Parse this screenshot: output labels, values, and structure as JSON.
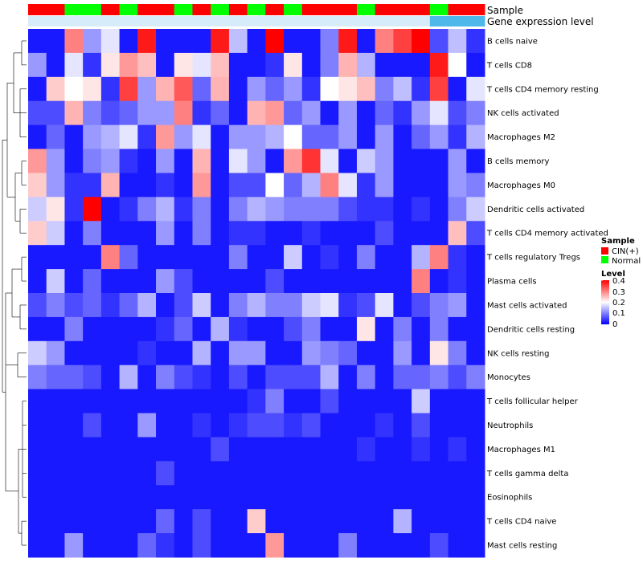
{
  "chart_data": {
    "type": "heatmap",
    "title": "",
    "annotations": [
      {
        "name": "Sample",
        "values": [
          "CIN(+)",
          "CIN(+)",
          "Normal",
          "Normal",
          "CIN(+)",
          "Normal",
          "CIN(+)",
          "CIN(+)",
          "Normal",
          "CIN(+)",
          "Normal",
          "CIN(+)",
          "Normal",
          "CIN(+)",
          "Normal",
          "CIN(+)",
          "CIN(+)",
          "CIN(+)",
          "Normal",
          "CIN(+)",
          "CIN(+)",
          "CIN(+)",
          "Normal",
          "CIN(+)",
          "CIN(+)"
        ]
      },
      {
        "name": "Gene expression level",
        "values": [
          "low",
          "low",
          "low",
          "low",
          "low",
          "low",
          "low",
          "low",
          "low",
          "low",
          "low",
          "low",
          "low",
          "low",
          "low",
          "low",
          "low",
          "low",
          "low",
          "low",
          "low",
          "low",
          "high",
          "high",
          "high"
        ]
      }
    ],
    "rows": [
      {
        "label": "B cells naive",
        "values": [
          0.02,
          0.02,
          0.3,
          0.12,
          0.18,
          0.02,
          0.38,
          0.02,
          0.02,
          0.02,
          0.38,
          0.15,
          0.02,
          0.4,
          0.02,
          0.02,
          0.1,
          0.38,
          0.02,
          0.3,
          0.35,
          0.4,
          0.06,
          0.15,
          0.04
        ]
      },
      {
        "label": "T cells CD8",
        "values": [
          0.12,
          0.02,
          0.18,
          0.04,
          0.22,
          0.28,
          0.25,
          0.02,
          0.22,
          0.18,
          0.25,
          0.02,
          0.02,
          0.04,
          0.22,
          0.02,
          0.1,
          0.26,
          0.14,
          0.02,
          0.02,
          0.02,
          0.38,
          0.2,
          0.02
        ]
      },
      {
        "label": "T cells CD4 memory resting",
        "values": [
          0.02,
          0.24,
          0.2,
          0.22,
          0.04,
          0.35,
          0.12,
          0.26,
          0.33,
          0.08,
          0.26,
          0.02,
          0.12,
          0.08,
          0.12,
          0.04,
          0.2,
          0.22,
          0.25,
          0.1,
          0.15,
          0.04,
          0.35,
          0.02,
          0.18
        ]
      },
      {
        "label": "NK cells activated",
        "values": [
          0.06,
          0.06,
          0.26,
          0.1,
          0.06,
          0.08,
          0.12,
          0.12,
          0.3,
          0.04,
          0.08,
          0.02,
          0.26,
          0.28,
          0.08,
          0.12,
          0.02,
          0.12,
          0.02,
          0.08,
          0.04,
          0.12,
          0.18,
          0.06,
          0.1
        ]
      },
      {
        "label": "Macrophages M2",
        "values": [
          0.02,
          0.08,
          0.02,
          0.12,
          0.14,
          0.18,
          0.04,
          0.28,
          0.12,
          0.18,
          0.02,
          0.12,
          0.12,
          0.14,
          0.2,
          0.08,
          0.08,
          0.12,
          0.02,
          0.12,
          0.02,
          0.08,
          0.12,
          0.04,
          0.14
        ]
      },
      {
        "label": "B cells memory",
        "values": [
          0.28,
          0.12,
          0.02,
          0.1,
          0.12,
          0.04,
          0.02,
          0.12,
          0.02,
          0.26,
          0.02,
          0.18,
          0.12,
          0.02,
          0.28,
          0.36,
          0.18,
          0.02,
          0.16,
          0.12,
          0.02,
          0.02,
          0.02,
          0.12,
          0.02
        ]
      },
      {
        "label": "Macrophages M0",
        "values": [
          0.24,
          0.12,
          0.04,
          0.04,
          0.26,
          0.02,
          0.02,
          0.04,
          0.02,
          0.28,
          0.02,
          0.06,
          0.06,
          0.2,
          0.08,
          0.14,
          0.3,
          0.18,
          0.04,
          0.12,
          0.02,
          0.02,
          0.02,
          0.12,
          0.1
        ]
      },
      {
        "label": "Dendritic cells activated",
        "values": [
          0.16,
          0.22,
          0.04,
          0.4,
          0.02,
          0.04,
          0.1,
          0.14,
          0.04,
          0.1,
          0.02,
          0.1,
          0.14,
          0.12,
          0.1,
          0.1,
          0.1,
          0.06,
          0.04,
          0.04,
          0.02,
          0.04,
          0.02,
          0.1,
          0.16
        ]
      },
      {
        "label": "T cells CD4 memory activated",
        "values": [
          0.24,
          0.16,
          0.02,
          0.1,
          0.02,
          0.02,
          0.02,
          0.12,
          0.02,
          0.1,
          0.02,
          0.04,
          0.04,
          0.02,
          0.02,
          0.04,
          0.02,
          0.02,
          0.02,
          0.06,
          0.02,
          0.02,
          0.02,
          0.25,
          0.06
        ]
      },
      {
        "label": "T cells regulatory  Tregs",
        "values": [
          0.02,
          0.02,
          0.02,
          0.02,
          0.3,
          0.08,
          0.02,
          0.02,
          0.02,
          0.02,
          0.02,
          0.1,
          0.02,
          0.02,
          0.16,
          0.02,
          0.04,
          0.02,
          0.1,
          0.02,
          0.02,
          0.14,
          0.3,
          0.04,
          0.02
        ]
      },
      {
        "label": "Plasma cells",
        "values": [
          0.02,
          0.16,
          0.02,
          0.08,
          0.02,
          0.02,
          0.02,
          0.12,
          0.06,
          0.02,
          0.02,
          0.02,
          0.02,
          0.06,
          0.02,
          0.02,
          0.02,
          0.02,
          0.02,
          0.02,
          0.02,
          0.3,
          0.02,
          0.04,
          0.02
        ]
      },
      {
        "label": "Mast cells activated",
        "values": [
          0.06,
          0.1,
          0.06,
          0.08,
          0.04,
          0.08,
          0.14,
          0.02,
          0.06,
          0.16,
          0.02,
          0.1,
          0.14,
          0.1,
          0.1,
          0.16,
          0.18,
          0.04,
          0.06,
          0.18,
          0.02,
          0.06,
          0.1,
          0.12,
          0.02
        ]
      },
      {
        "label": "Dendritic cells resting",
        "values": [
          0.02,
          0.02,
          0.1,
          0.02,
          0.02,
          0.02,
          0.02,
          0.04,
          0.08,
          0.02,
          0.14,
          0.04,
          0.02,
          0.02,
          0.06,
          0.1,
          0.02,
          0.02,
          0.22,
          0.02,
          0.1,
          0.02,
          0.1,
          0.02,
          0.02
        ]
      },
      {
        "label": "NK cells resting",
        "values": [
          0.16,
          0.12,
          0.02,
          0.02,
          0.02,
          0.02,
          0.04,
          0.02,
          0.02,
          0.14,
          0.02,
          0.12,
          0.12,
          0.02,
          0.02,
          0.12,
          0.1,
          0.08,
          0.02,
          0.02,
          0.12,
          0.02,
          0.22,
          0.1,
          0.02
        ]
      },
      {
        "label": "Monocytes",
        "values": [
          0.1,
          0.08,
          0.08,
          0.06,
          0.02,
          0.14,
          0.02,
          0.1,
          0.06,
          0.04,
          0.02,
          0.06,
          0.02,
          0.06,
          0.06,
          0.06,
          0.14,
          0.02,
          0.1,
          0.02,
          0.08,
          0.08,
          0.1,
          0.06,
          0.1
        ]
      },
      {
        "label": "T cells follicular helper",
        "values": [
          0.02,
          0.02,
          0.02,
          0.02,
          0.02,
          0.02,
          0.02,
          0.02,
          0.02,
          0.02,
          0.02,
          0.02,
          0.04,
          0.1,
          0.02,
          0.02,
          0.06,
          0.02,
          0.02,
          0.02,
          0.02,
          0.16,
          0.02,
          0.02,
          0.02
        ]
      },
      {
        "label": "Neutrophils",
        "values": [
          0.02,
          0.02,
          0.02,
          0.06,
          0.02,
          0.02,
          0.12,
          0.02,
          0.02,
          0.04,
          0.02,
          0.04,
          0.06,
          0.06,
          0.04,
          0.06,
          0.02,
          0.02,
          0.02,
          0.04,
          0.02,
          0.06,
          0.02,
          0.02,
          0.02
        ]
      },
      {
        "label": "Macrophages M1",
        "values": [
          0.02,
          0.02,
          0.02,
          0.02,
          0.02,
          0.02,
          0.02,
          0.02,
          0.02,
          0.02,
          0.06,
          0.02,
          0.02,
          0.02,
          0.02,
          0.02,
          0.02,
          0.02,
          0.04,
          0.02,
          0.02,
          0.04,
          0.02,
          0.04,
          0.02
        ]
      },
      {
        "label": "T cells gamma delta",
        "values": [
          0.02,
          0.02,
          0.02,
          0.02,
          0.02,
          0.02,
          0.02,
          0.06,
          0.02,
          0.02,
          0.02,
          0.02,
          0.02,
          0.02,
          0.02,
          0.02,
          0.02,
          0.02,
          0.02,
          0.02,
          0.02,
          0.02,
          0.02,
          0.02,
          0.02
        ]
      },
      {
        "label": "Eosinophils",
        "values": [
          0.02,
          0.02,
          0.02,
          0.02,
          0.02,
          0.02,
          0.02,
          0.02,
          0.02,
          0.02,
          0.02,
          0.02,
          0.02,
          0.02,
          0.02,
          0.02,
          0.02,
          0.02,
          0.02,
          0.02,
          0.02,
          0.02,
          0.02,
          0.02,
          0.02
        ]
      },
      {
        "label": "T cells CD4 naive",
        "values": [
          0.02,
          0.02,
          0.02,
          0.02,
          0.02,
          0.02,
          0.02,
          0.08,
          0.02,
          0.06,
          0.02,
          0.02,
          0.24,
          0.02,
          0.02,
          0.02,
          0.02,
          0.02,
          0.02,
          0.02,
          0.14,
          0.02,
          0.02,
          0.02,
          0.02
        ]
      },
      {
        "label": "Mast cells resting",
        "values": [
          0.02,
          0.02,
          0.12,
          0.02,
          0.02,
          0.02,
          0.08,
          0.04,
          0.02,
          0.06,
          0.02,
          0.02,
          0.02,
          0.28,
          0.02,
          0.02,
          0.02,
          0.1,
          0.02,
          0.02,
          0.02,
          0.02,
          0.06,
          0.02,
          0.02
        ]
      }
    ],
    "legends": {
      "sample": {
        "title": "Sample",
        "entries": [
          {
            "label": "CIN(+)",
            "color": "#ff0000"
          },
          {
            "label": "Normal",
            "color": "#00ff00"
          }
        ]
      },
      "level": {
        "title": "Level",
        "min": 0,
        "max": 0.4,
        "ticks": [
          "0.4",
          "0.3",
          "0.2",
          "0.1",
          "0"
        ]
      }
    },
    "colors": {
      "low": "#0000ff",
      "mid": "#ffffff",
      "high": "#ff0000",
      "expr_low": "#d6ecfa",
      "expr_high": "#4fb8ea"
    },
    "dendrogram": "row-clustering"
  }
}
